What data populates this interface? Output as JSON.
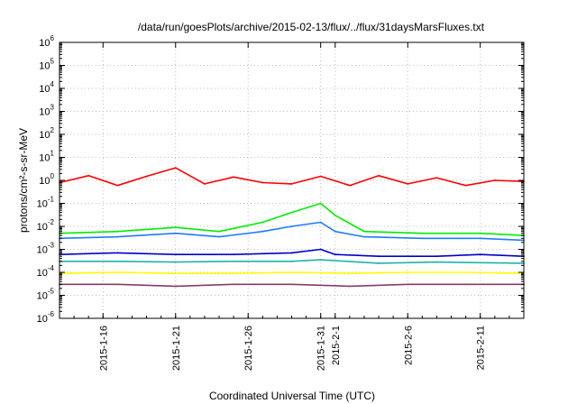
{
  "chart_data": {
    "type": "line",
    "title": "/data/run/goesPlots/archive/2015-02-13/flux/../flux/31daysMarsFluxes.txt",
    "xlabel": "Coordinated Universal Time (UTC)",
    "ylabel": "protons/cm²-s-sr-MeV",
    "yscale": "log",
    "ylim": [
      1e-06,
      1000000.0
    ],
    "xlim": [
      "2015-01-13",
      "2015-02-14"
    ],
    "grid": true,
    "legend": "none",
    "ytick_labels": [
      {
        "value": -6,
        "base": "10",
        "exp": "-6"
      },
      {
        "value": -5,
        "base": "10",
        "exp": "-5"
      },
      {
        "value": -4,
        "base": "10",
        "exp": "-4"
      },
      {
        "value": -3,
        "base": "10",
        "exp": "-3"
      },
      {
        "value": -2,
        "base": "10",
        "exp": "-2"
      },
      {
        "value": -1,
        "base": "10",
        "exp": "-1"
      },
      {
        "value": 0,
        "base": "10",
        "exp": "0"
      },
      {
        "value": 1,
        "base": "10",
        "exp": "1"
      },
      {
        "value": 2,
        "base": "10",
        "exp": "2"
      },
      {
        "value": 3,
        "base": "10",
        "exp": "3"
      },
      {
        "value": 4,
        "base": "10",
        "exp": "4"
      },
      {
        "value": 5,
        "base": "10",
        "exp": "5"
      },
      {
        "value": 6,
        "base": "10",
        "exp": "6"
      }
    ],
    "xtick_labels": [
      "2015-1-16",
      "2015-1-21",
      "2015-1-26",
      "2015-1-31",
      "2015-2-1",
      "2015-2-6",
      "2015-2-11"
    ],
    "series": [
      {
        "color": "#ff0000",
        "x": [
          "2015-01-13",
          "2015-01-15",
          "2015-01-17",
          "2015-01-19",
          "2015-01-21",
          "2015-01-23",
          "2015-01-25",
          "2015-01-27",
          "2015-01-29",
          "2015-01-31",
          "2015-02-02",
          "2015-02-04",
          "2015-02-06",
          "2015-02-08",
          "2015-02-10",
          "2015-02-12",
          "2015-02-14"
        ],
        "y": [
          0.8,
          1.6,
          0.6,
          1.5,
          3.5,
          0.7,
          1.4,
          0.8,
          0.7,
          1.5,
          0.6,
          1.6,
          0.7,
          1.3,
          0.6,
          1.0,
          0.9
        ]
      },
      {
        "color": "#00ee00",
        "x": [
          "2015-01-13",
          "2015-01-17",
          "2015-01-21",
          "2015-01-24",
          "2015-01-27",
          "2015-01-29",
          "2015-01-31",
          "2015-02-01",
          "2015-02-03",
          "2015-02-07",
          "2015-02-11",
          "2015-02-14"
        ],
        "y": [
          0.005,
          0.006,
          0.009,
          0.006,
          0.015,
          0.04,
          0.1,
          0.03,
          0.006,
          0.005,
          0.005,
          0.004
        ]
      },
      {
        "color": "#1e7bff",
        "x": [
          "2015-01-13",
          "2015-01-17",
          "2015-01-21",
          "2015-01-24",
          "2015-01-27",
          "2015-01-29",
          "2015-01-31",
          "2015-02-01",
          "2015-02-03",
          "2015-02-07",
          "2015-02-11",
          "2015-02-14"
        ],
        "y": [
          0.003,
          0.0035,
          0.005,
          0.0035,
          0.006,
          0.01,
          0.015,
          0.006,
          0.0035,
          0.003,
          0.003,
          0.0025
        ]
      },
      {
        "color": "#0000cc",
        "x": [
          "2015-01-13",
          "2015-01-17",
          "2015-01-21",
          "2015-01-25",
          "2015-01-29",
          "2015-01-31",
          "2015-02-01",
          "2015-02-04",
          "2015-02-08",
          "2015-02-11",
          "2015-02-14"
        ],
        "y": [
          0.0006,
          0.0007,
          0.0006,
          0.0006,
          0.0007,
          0.001,
          0.0006,
          0.0005,
          0.0005,
          0.0006,
          0.0005
        ]
      },
      {
        "color": "#20b2aa",
        "x": [
          "2015-01-13",
          "2015-01-17",
          "2015-01-21",
          "2015-01-25",
          "2015-01-29",
          "2015-01-31",
          "2015-02-04",
          "2015-02-08",
          "2015-02-14"
        ],
        "y": [
          0.0003,
          0.0003,
          0.00028,
          0.0003,
          0.0003,
          0.00035,
          0.00025,
          0.00028,
          0.00025
        ]
      },
      {
        "color": "#ffff00",
        "x": [
          "2015-01-13",
          "2015-01-17",
          "2015-01-21",
          "2015-01-25",
          "2015-01-29",
          "2015-02-02",
          "2015-02-06",
          "2015-02-10",
          "2015-02-14"
        ],
        "y": [
          9e-05,
          0.0001,
          9e-05,
          9e-05,
          0.0001,
          9e-05,
          0.0001,
          0.0001,
          9e-05
        ]
      },
      {
        "color": "#8b3a62",
        "x": [
          "2015-01-13",
          "2015-01-17",
          "2015-01-21",
          "2015-01-25",
          "2015-01-29",
          "2015-02-02",
          "2015-02-06",
          "2015-02-10",
          "2015-02-14"
        ],
        "y": [
          3e-05,
          3e-05,
          2.5e-05,
          3e-05,
          3e-05,
          2.5e-05,
          3e-05,
          3e-05,
          3e-05
        ]
      }
    ]
  }
}
